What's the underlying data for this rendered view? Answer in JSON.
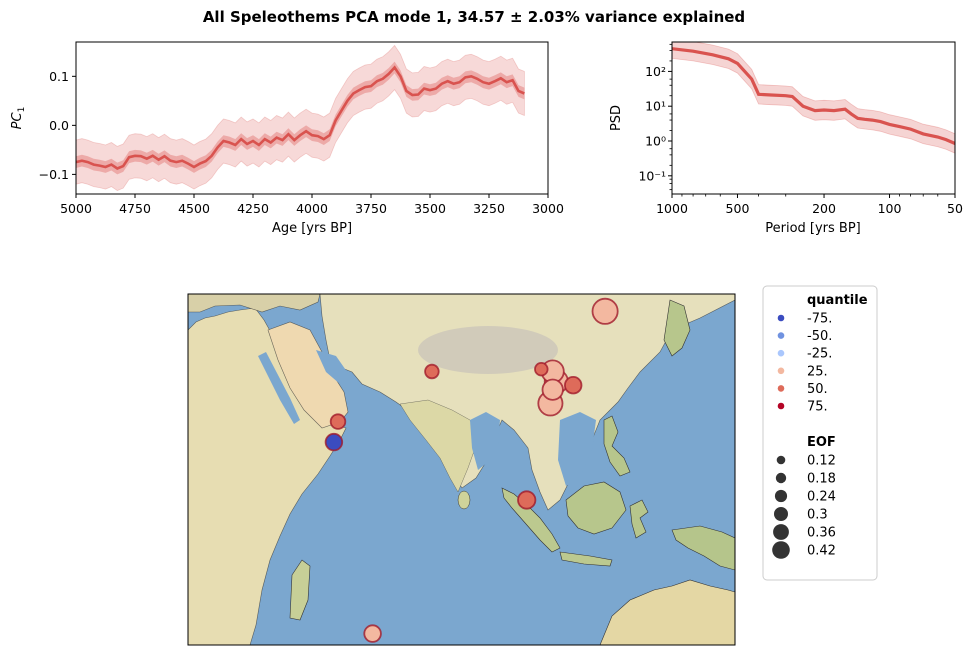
{
  "figure": {
    "title": "All Speleothems PCA mode 1, 34.57 ± 2.03% variance explained"
  },
  "chart_data": [
    {
      "type": "line",
      "id": "pc_timeseries",
      "xlabel": "Age [yrs BP]",
      "ylabel_main": "PC",
      "ylabel_sub": "1",
      "xlim": [
        5000,
        3000
      ],
      "ylim": [
        -0.14,
        0.17
      ],
      "x_ticks": [
        5000,
        4750,
        4500,
        4250,
        4000,
        3750,
        3500,
        3250,
        3000
      ],
      "y_ticks": [
        -0.1,
        0.0,
        0.1
      ],
      "y_tick_labels": [
        "−0.1",
        "0.0",
        "0.1"
      ],
      "color": "#d9534f",
      "series": [
        {
          "x": [
            5000,
            4975,
            4950,
            4925,
            4900,
            4875,
            4850,
            4825,
            4800,
            4775,
            4750,
            4725,
            4700,
            4675,
            4650,
            4625,
            4600,
            4575,
            4550,
            4525,
            4500,
            4475,
            4450,
            4425,
            4400,
            4375,
            4350,
            4325,
            4300,
            4275,
            4250,
            4225,
            4200,
            4175,
            4150,
            4125,
            4100,
            4075,
            4050,
            4025,
            4000,
            3975,
            3950,
            3925,
            3900,
            3875,
            3850,
            3825,
            3800,
            3775,
            3750,
            3725,
            3700,
            3675,
            3650,
            3625,
            3600,
            3575,
            3550,
            3525,
            3500,
            3475,
            3450,
            3425,
            3400,
            3375,
            3350,
            3325,
            3300,
            3275,
            3250,
            3225,
            3200,
            3175,
            3150,
            3125,
            3100
          ],
          "median": [
            -0.075,
            -0.072,
            -0.075,
            -0.08,
            -0.082,
            -0.085,
            -0.08,
            -0.088,
            -0.083,
            -0.065,
            -0.062,
            -0.063,
            -0.068,
            -0.062,
            -0.07,
            -0.063,
            -0.072,
            -0.075,
            -0.072,
            -0.078,
            -0.085,
            -0.078,
            -0.073,
            -0.062,
            -0.045,
            -0.032,
            -0.035,
            -0.04,
            -0.028,
            -0.038,
            -0.032,
            -0.04,
            -0.028,
            -0.035,
            -0.025,
            -0.03,
            -0.018,
            -0.03,
            -0.02,
            -0.012,
            -0.02,
            -0.022,
            -0.028,
            -0.02,
            0.01,
            0.03,
            0.05,
            0.065,
            0.072,
            0.078,
            0.08,
            0.09,
            0.095,
            0.105,
            0.118,
            0.1,
            0.07,
            0.062,
            0.063,
            0.075,
            0.072,
            0.075,
            0.085,
            0.09,
            0.085,
            0.088,
            0.098,
            0.1,
            0.095,
            0.088,
            0.085,
            0.09,
            0.096,
            0.088,
            0.092,
            0.07,
            0.065
          ],
          "inner_half_width": 0.012,
          "outer_half_width": 0.045
        }
      ]
    },
    {
      "type": "line",
      "id": "psd",
      "xlabel": "Period [yrs BP]",
      "ylabel": "PSD",
      "x_scale": "log-reversed",
      "y_scale": "log",
      "xlim": [
        1000,
        50
      ],
      "ylim": [
        0.03,
        700
      ],
      "x_ticks": [
        1000,
        500,
        200,
        100,
        50
      ],
      "y_ticks": [
        0.1,
        1,
        10,
        100
      ],
      "y_tick_labels": [
        "10⁻¹",
        "10⁰",
        "10¹",
        "10²"
      ],
      "color": "#d9534f",
      "series": [
        {
          "x": [
            1000,
            800,
            650,
            550,
            500,
            430,
            400,
            350,
            300,
            280,
            250,
            220,
            200,
            180,
            160,
            150,
            140,
            130,
            120,
            110,
            100,
            90,
            80,
            70,
            60,
            55,
            50
          ],
          "y": [
            450,
            380,
            300,
            230,
            170,
            60,
            22,
            21,
            20,
            19,
            10,
            7.5,
            7.8,
            7.5,
            8.2,
            6,
            4.5,
            4.2,
            4,
            3.6,
            3,
            2.6,
            2.2,
            1.6,
            1.3,
            1.1,
            0.85
          ],
          "band_factor": 1.9
        }
      ]
    },
    {
      "type": "scatter",
      "id": "eof_map",
      "x_range": [
        30,
        150
      ],
      "y_range": [
        -32,
        45
      ],
      "points": [
        {
          "lon": 121.5,
          "lat": 41.2,
          "quantile": "25.",
          "eof": 0.42
        },
        {
          "lon": 83.5,
          "lat": 28.0,
          "quantile": "50.",
          "eof": 0.18
        },
        {
          "lon": 107.5,
          "lat": 28.5,
          "quantile": "50.",
          "eof": 0.16
        },
        {
          "lon": 110.0,
          "lat": 28.0,
          "quantile": "25.",
          "eof": 0.36
        },
        {
          "lon": 110.8,
          "lat": 25.8,
          "quantile": "25.",
          "eof": 0.38
        },
        {
          "lon": 110.0,
          "lat": 24.0,
          "quantile": "25.",
          "eof": 0.32
        },
        {
          "lon": 114.5,
          "lat": 25.0,
          "quantile": "50.",
          "eof": 0.24
        },
        {
          "lon": 109.5,
          "lat": 21.0,
          "quantile": "25.",
          "eof": 0.4
        },
        {
          "lon": 62.9,
          "lat": 17.0,
          "quantile": "50.",
          "eof": 0.2
        },
        {
          "lon": 62.0,
          "lat": 12.5,
          "quantile": "-75.",
          "eof": 0.24
        },
        {
          "lon": 104.3,
          "lat": -0.2,
          "quantile": "50.",
          "eof": 0.26
        },
        {
          "lon": 70.5,
          "lat": -29.5,
          "quantile": "25.",
          "eof": 0.24
        }
      ]
    }
  ],
  "legend": {
    "quantile_title": "quantile",
    "quantiles": [
      {
        "label": "-75.",
        "color": "#3b4cc0"
      },
      {
        "label": "-50.",
        "color": "#7092e0"
      },
      {
        "label": "-25.",
        "color": "#aac7fd"
      },
      {
        "label": "25.",
        "color": "#f3b8a0"
      },
      {
        "label": "50.",
        "color": "#de6b5a"
      },
      {
        "label": "75.",
        "color": "#b40426"
      }
    ],
    "eof_title": "EOF",
    "eofs": [
      {
        "label": "0.12",
        "value": 0.12
      },
      {
        "label": "0.18",
        "value": 0.18
      },
      {
        "label": "0.24",
        "value": 0.24
      },
      {
        "label": "0.3",
        "value": 0.3
      },
      {
        "label": "0.36",
        "value": 0.36
      },
      {
        "label": "0.42",
        "value": 0.42
      }
    ]
  },
  "colors": {
    "line": "#d9534f",
    "ocean": "#7ba7cf",
    "land": "#e8dfb8",
    "marker_edge": "#a01a2a"
  }
}
